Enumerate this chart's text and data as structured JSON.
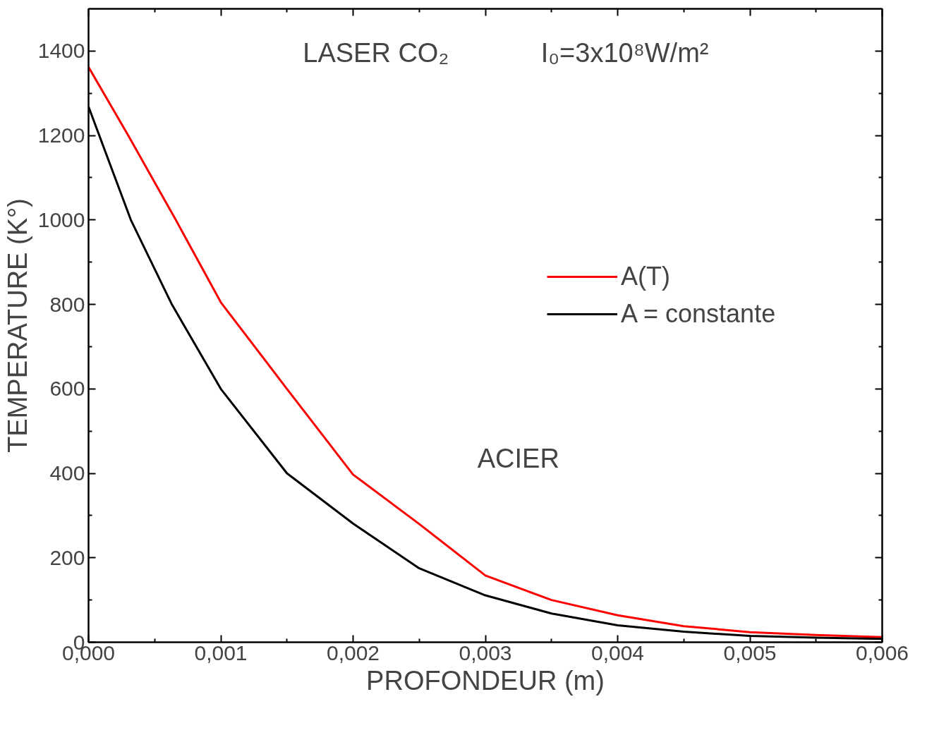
{
  "chart_data": {
    "type": "line",
    "xlabel": "PROFONDEUR (m)",
    "ylabel": "TEMPERATURE (K°)",
    "annotations": [
      "LASER CO₂",
      "I₀=3x10⁸W/m²",
      "ACIER"
    ],
    "xlim": [
      0,
      0.006
    ],
    "ylim": [
      0,
      1500
    ],
    "xticks": [
      {
        "value": 0,
        "label": "0,000"
      },
      {
        "value": 0.001,
        "label": "0,001"
      },
      {
        "value": 0.002,
        "label": "0,002"
      },
      {
        "value": 0.003,
        "label": "0,003"
      },
      {
        "value": 0.004,
        "label": "0,004"
      },
      {
        "value": 0.005,
        "label": "0,005"
      },
      {
        "value": 0.006,
        "label": "0,006"
      }
    ],
    "yticks": [
      0,
      200,
      400,
      600,
      800,
      1000,
      1200,
      1400
    ],
    "grid": false,
    "legend": "right",
    "marker": "none",
    "line_style": "solid",
    "series": [
      {
        "name": "A(T)",
        "color": "#ff0000",
        "x": [
          0,
          0.0003,
          0.00066,
          0.001,
          0.0015,
          0.002,
          0.0025,
          0.003,
          0.0035,
          0.004,
          0.0045,
          0.005,
          0.0055,
          0.006
        ],
        "values": [
          1362,
          1200,
          1000,
          805,
          600,
          397,
          280,
          158,
          100,
          64,
          38,
          24,
          17,
          12
        ]
      },
      {
        "name": "A = constante",
        "color": "#000000",
        "x": [
          0,
          0.00032,
          0.00063,
          0.001,
          0.0015,
          0.002,
          0.0025,
          0.003,
          0.0035,
          0.004,
          0.0045,
          0.005,
          0.0055,
          0.006
        ],
        "values": [
          1268,
          1000,
          800,
          600,
          400,
          281,
          175,
          111,
          68,
          40,
          25,
          15,
          11,
          8
        ]
      }
    ]
  }
}
